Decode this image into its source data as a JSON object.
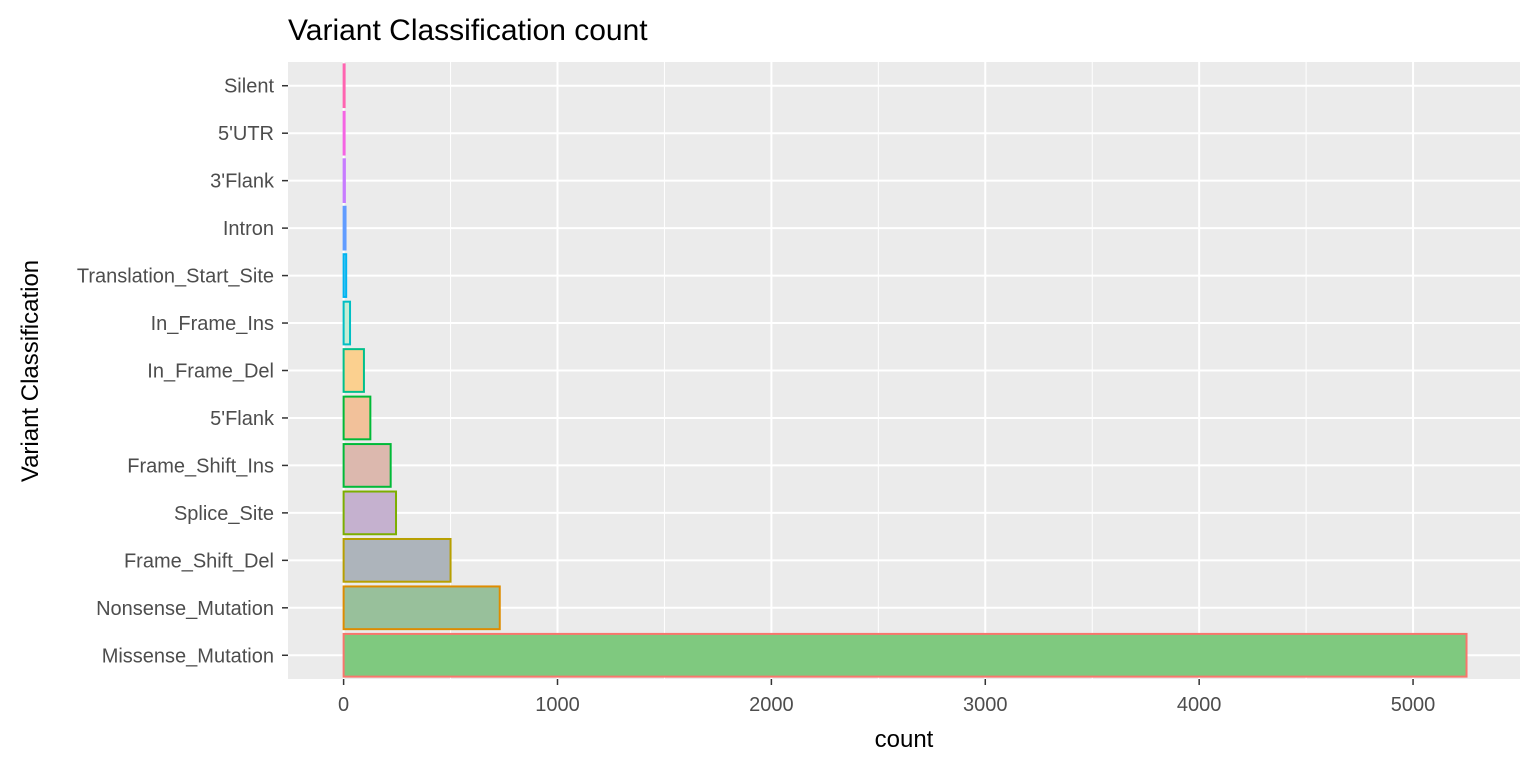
{
  "chart_data": {
    "type": "bar",
    "orientation": "horizontal",
    "title": "Variant Classification count",
    "xlabel": "count",
    "ylabel": "Variant Classification",
    "xlim": [
      -260,
      5500
    ],
    "xticks": [
      0,
      1000,
      2000,
      3000,
      4000,
      5000
    ],
    "grid": true,
    "legend": "none",
    "categories": [
      "Missense_Mutation",
      "Nonsense_Mutation",
      "Frame_Shift_Del",
      "Splice_Site",
      "Frame_Shift_Ins",
      "5'Flank",
      "In_Frame_Del",
      "In_Frame_Ins",
      "Translation_Start_Site",
      "Intron",
      "3'Flank",
      "5'UTR",
      "Silent"
    ],
    "values": [
      5250,
      730,
      500,
      245,
      220,
      125,
      95,
      30,
      12,
      9,
      6,
      4,
      3
    ],
    "fill_colors": [
      "#7fc97f",
      "#98c09b",
      "#adb4bb",
      "#c5b1cf",
      "#dcb8ae",
      "#f2c19a",
      "#fbd08f",
      "#c6ecd4",
      "#7fcff0",
      "#a3a2ef",
      "#d39af5",
      "#f08fe6",
      "#f58fc8"
    ],
    "stroke_colors": [
      "#f8766d",
      "#de8c00",
      "#b79f00",
      "#7cae00",
      "#00ba38",
      "#00ba38",
      "#00c08b",
      "#00bfc4",
      "#00b4f0",
      "#619cff",
      "#c77cff",
      "#f564e3",
      "#ff64b0"
    ]
  }
}
